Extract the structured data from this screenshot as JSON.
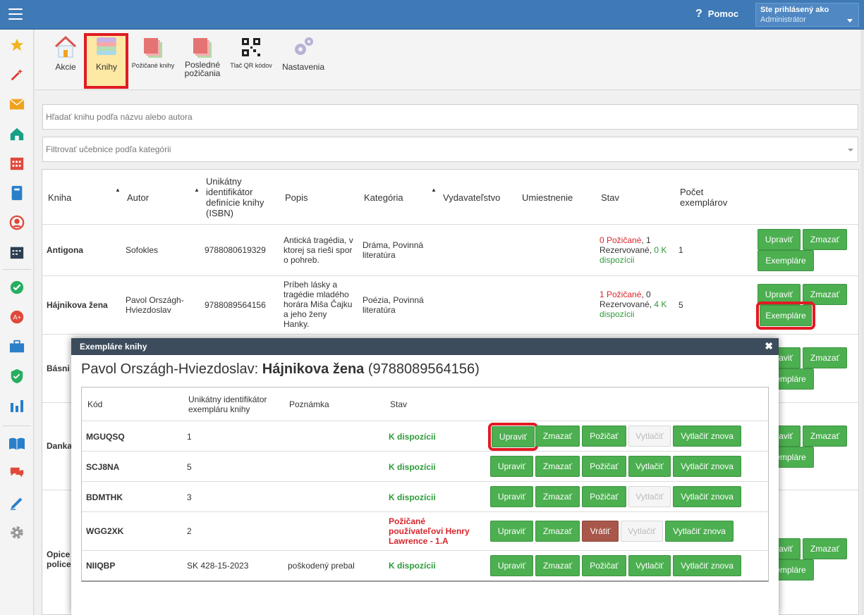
{
  "topbar": {
    "help": "Pomoc",
    "user_label": "Ste prihlásený ako",
    "user_name": "Administrátor"
  },
  "toolbar": {
    "items": [
      "Akcie",
      "Knihy",
      "Požičané knihy",
      "Posledné požičania",
      "Tlač QR kódov",
      "Nastavenia"
    ],
    "selected": "Knihy"
  },
  "search": {
    "placeholder": "Hľadať knihu podľa názvu alebo autora"
  },
  "filter": {
    "placeholder": "Filtrovať učebnice podľa kategórii"
  },
  "books_table": {
    "headers": [
      "Kniha",
      "Autor",
      "Unikátny identifikátor definície knihy (ISBN)",
      "Popis",
      "Kategória",
      "Vydavateľstvo",
      "Umiestnenie",
      "Stav",
      "Počet exemplárov"
    ],
    "rows": [
      {
        "title": "Antigona",
        "author": "Sofokles",
        "isbn": "9788080619329",
        "desc": "Antická tragédia, v ktorej sa rieši spor o pohreb.",
        "category": "Dráma, Povinná literatúra",
        "status_borrowed": "0 Požičané",
        "status_reserved": ", 1 Rezervované, ",
        "status_avail": "0 K dispozícii",
        "count": "1"
      },
      {
        "title": "Hájnikova žena",
        "author": "Pavol Országh-Hviezdoslav",
        "isbn": "9788089564156",
        "desc": "Príbeh lásky a tragédie mladého horára Miša Čajku a jeho ženy Hanky.",
        "category": "Poézia, Povinná literatúra",
        "status_borrowed": "1 Požičané",
        "status_reserved": ", 0 Rezervované, ",
        "status_avail": "4 K dispozícii",
        "count": "5"
      },
      {
        "title": "Básni"
      },
      {
        "title": "Danka"
      },
      {
        "title": "Opice police"
      }
    ],
    "btn_edit": "Upraviť",
    "btn_delete": "Zmazať",
    "btn_copies": "Exempláre"
  },
  "modal": {
    "header": "Exempláre knihy",
    "author": "Pavol Országh-Hviezdoslav:",
    "title": "Hájnikova žena",
    "isbn": "(9788089564156)",
    "headers": [
      "Kód",
      "Unikátny identifikátor exempláru knihy",
      "Poznámka",
      "Stav"
    ],
    "rows": [
      {
        "code": "MGUQSQ",
        "id": "1",
        "note": "",
        "status": "K dispozícii",
        "state": "available"
      },
      {
        "code": "SCJ8NA",
        "id": "5",
        "note": "",
        "status": "K dispozícii",
        "state": "available"
      },
      {
        "code": "BDMTHK",
        "id": "3",
        "note": "",
        "status": "K dispozícii",
        "state": "available"
      },
      {
        "code": "WGG2XK",
        "id": "2",
        "note": "",
        "status": "Požičané používateľovi Henry Lawrence - 1.A",
        "state": "borrowed"
      },
      {
        "code": "NIIQBP",
        "id": "SK 428-15-2023",
        "note": "poškodený prebal",
        "status": "K dispozícii",
        "state": "available"
      }
    ],
    "btn_edit": "Upraviť",
    "btn_delete": "Zmazať",
    "btn_borrow": "Požičať",
    "btn_return": "Vrátiť",
    "btn_print": "Vytlačiť",
    "btn_reprint": "Vytlačiť znova"
  },
  "colors": {
    "topbar": "#3f7ab7",
    "button_green": "#4caf50",
    "highlight": "#e01b24",
    "return_button": "#a8574a"
  }
}
